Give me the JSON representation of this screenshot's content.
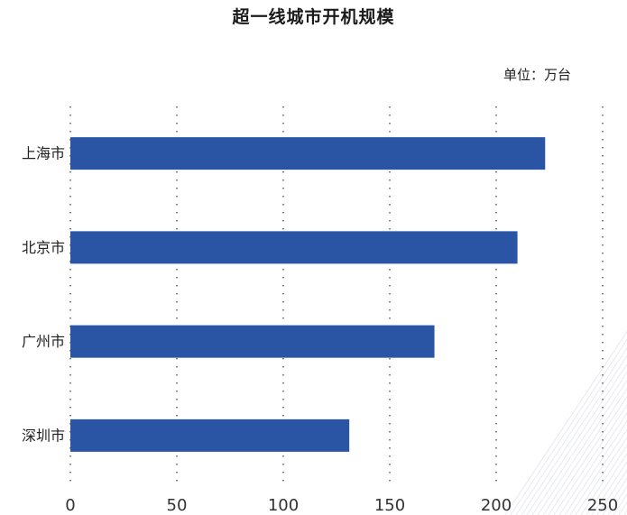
{
  "chart_data": {
    "type": "bar",
    "orientation": "horizontal",
    "title": "超一线城市开机规模",
    "unit_label": "单位：万台",
    "categories": [
      "上海市",
      "北京市",
      "广州市",
      "深圳市"
    ],
    "values": [
      223,
      210,
      171,
      131
    ],
    "xlim": [
      0,
      250
    ],
    "xticks": [
      0,
      50,
      100,
      150,
      200,
      250
    ],
    "grid": true,
    "bar_color": "#2A55A4",
    "grid_color": "#444444",
    "decoration_color": "#E6E8EC"
  }
}
